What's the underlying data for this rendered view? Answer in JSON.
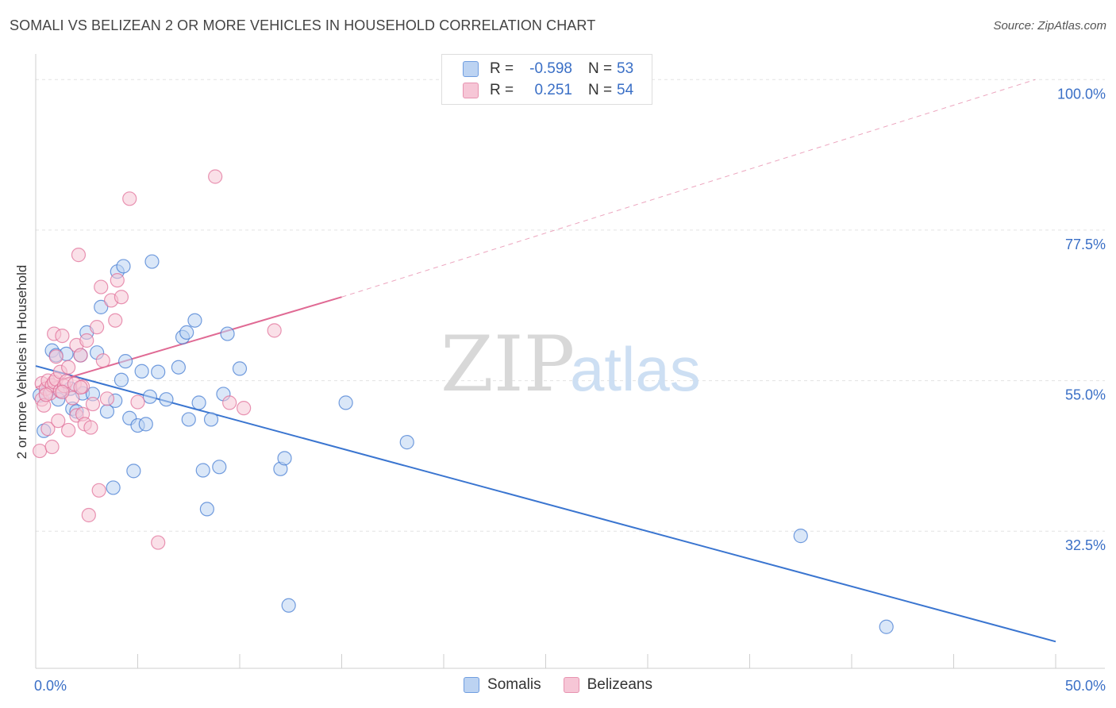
{
  "title": "SOMALI VS BELIZEAN 2 OR MORE VEHICLES IN HOUSEHOLD CORRELATION CHART",
  "source": "Source: ZipAtlas.com",
  "watermark": {
    "zip": "ZIP",
    "atlas": "atlas"
  },
  "colors": {
    "blue": "#3a75d0",
    "pink": "#e06a94",
    "blue_fill": "#bcd3f2",
    "pink_fill": "#f6c6d6",
    "tick_label": "#3a6fc6"
  },
  "legend": {
    "rows": [
      {
        "r_label": "R =",
        "r_value": "-0.598",
        "n_label": "N =",
        "n_value": "53",
        "color": "#bcd3f2",
        "border": "#6f9de0"
      },
      {
        "r_label": "R =",
        "r_value": "0.251",
        "n_label": "N =",
        "n_value": "54",
        "color": "#f6c6d6",
        "border": "#e793b0"
      }
    ]
  },
  "bottom_legend": [
    {
      "label": "Somalis",
      "color": "#bcd3f2",
      "border": "#6f9de0"
    },
    {
      "label": "Belizeans",
      "color": "#f6c6d6",
      "border": "#e793b0"
    }
  ],
  "chart_data": {
    "type": "scatter",
    "title": "SOMALI VS BELIZEAN 2 OR MORE VEHICLES IN HOUSEHOLD CORRELATION CHART",
    "xlabel": "",
    "ylabel": "2 or more Vehicles in Household",
    "xlim": [
      0,
      50
    ],
    "ylim": [
      12,
      103
    ],
    "x_tick_labels": [
      {
        "value": 0,
        "label": "0.0%"
      },
      {
        "value": 50,
        "label": "50.0%"
      }
    ],
    "y_ticks": [
      {
        "value": 32.5,
        "label": "32.5%"
      },
      {
        "value": 55.0,
        "label": "55.0%"
      },
      {
        "value": 77.5,
        "label": "77.5%"
      },
      {
        "value": 100.0,
        "label": "100.0%"
      }
    ],
    "grid": true,
    "legend_position": "top-center",
    "series": [
      {
        "name": "Somalis",
        "color": "#3a75d0",
        "points": [
          [
            0.4,
            47.5
          ],
          [
            0.5,
            53.2
          ],
          [
            0.8,
            59.5
          ],
          [
            1.0,
            58.8
          ],
          [
            1.2,
            53.4
          ],
          [
            1.5,
            59.0
          ],
          [
            1.7,
            53.8
          ],
          [
            1.8,
            50.8
          ],
          [
            2.0,
            50.4
          ],
          [
            2.2,
            58.8
          ],
          [
            2.3,
            53.1
          ],
          [
            2.5,
            62.2
          ],
          [
            2.8,
            53.0
          ],
          [
            3.0,
            59.2
          ],
          [
            3.2,
            66.0
          ],
          [
            3.5,
            50.4
          ],
          [
            3.8,
            39.0
          ],
          [
            4.0,
            71.3
          ],
          [
            4.2,
            55.1
          ],
          [
            4.3,
            72.1
          ],
          [
            4.4,
            57.9
          ],
          [
            4.6,
            49.4
          ],
          [
            4.8,
            41.5
          ],
          [
            5.0,
            48.3
          ],
          [
            5.2,
            56.4
          ],
          [
            5.4,
            48.5
          ],
          [
            5.6,
            52.6
          ],
          [
            5.7,
            72.8
          ],
          [
            6.0,
            56.3
          ],
          [
            6.4,
            52.2
          ],
          [
            7.0,
            57.0
          ],
          [
            7.2,
            61.5
          ],
          [
            7.4,
            62.2
          ],
          [
            7.5,
            49.2
          ],
          [
            7.8,
            64.0
          ],
          [
            8.0,
            51.7
          ],
          [
            8.2,
            41.6
          ],
          [
            8.4,
            35.8
          ],
          [
            8.6,
            49.2
          ],
          [
            9.0,
            42.1
          ],
          [
            9.2,
            53.0
          ],
          [
            9.4,
            62.0
          ],
          [
            10.0,
            56.8
          ],
          [
            12.0,
            41.8
          ],
          [
            12.2,
            43.4
          ],
          [
            12.4,
            21.4
          ],
          [
            15.2,
            51.7
          ],
          [
            18.2,
            45.8
          ],
          [
            37.5,
            31.8
          ],
          [
            41.7,
            18.2
          ],
          [
            0.2,
            52.8
          ],
          [
            1.1,
            52.2
          ],
          [
            3.9,
            52.0
          ]
        ]
      },
      {
        "name": "Belizeans",
        "color": "#e06a94",
        "points": [
          [
            0.2,
            44.5
          ],
          [
            0.3,
            52.2
          ],
          [
            0.3,
            54.6
          ],
          [
            0.4,
            51.3
          ],
          [
            0.5,
            53.8
          ],
          [
            0.6,
            55.0
          ],
          [
            0.6,
            47.8
          ],
          [
            0.7,
            53.1
          ],
          [
            0.8,
            45.1
          ],
          [
            0.8,
            54.3
          ],
          [
            0.9,
            62.0
          ],
          [
            0.9,
            54.8
          ],
          [
            1.0,
            58.6
          ],
          [
            1.0,
            55.2
          ],
          [
            1.1,
            49.0
          ],
          [
            1.2,
            56.3
          ],
          [
            1.2,
            53.5
          ],
          [
            1.3,
            61.7
          ],
          [
            1.4,
            54.2
          ],
          [
            1.5,
            54.9
          ],
          [
            1.6,
            57.0
          ],
          [
            1.6,
            47.6
          ],
          [
            1.8,
            52.4
          ],
          [
            1.9,
            54.5
          ],
          [
            2.0,
            49.8
          ],
          [
            2.0,
            60.3
          ],
          [
            2.1,
            73.8
          ],
          [
            2.2,
            58.8
          ],
          [
            2.3,
            54.1
          ],
          [
            2.3,
            50.0
          ],
          [
            2.4,
            48.5
          ],
          [
            2.5,
            61.0
          ],
          [
            2.6,
            34.9
          ],
          [
            2.7,
            48.0
          ],
          [
            2.8,
            51.5
          ],
          [
            3.0,
            63.0
          ],
          [
            3.1,
            38.6
          ],
          [
            3.2,
            69.0
          ],
          [
            3.3,
            58.0
          ],
          [
            3.5,
            52.3
          ],
          [
            3.7,
            67.0
          ],
          [
            3.9,
            64.0
          ],
          [
            4.0,
            70.0
          ],
          [
            4.2,
            67.5
          ],
          [
            4.6,
            82.2
          ],
          [
            5.0,
            51.8
          ],
          [
            6.0,
            30.8
          ],
          [
            8.8,
            85.5
          ],
          [
            9.5,
            51.7
          ],
          [
            10.2,
            50.9
          ],
          [
            11.7,
            62.5
          ],
          [
            0.5,
            52.9
          ],
          [
            1.3,
            53.3
          ],
          [
            2.2,
            54.0
          ]
        ]
      }
    ],
    "trend_lines": [
      {
        "series": "Somalis",
        "x": [
          0,
          50
        ],
        "y": [
          57.2,
          16.0
        ]
      },
      {
        "series": "Belizeans",
        "x": [
          0,
          15
        ],
        "y": [
          54.0,
          67.5
        ],
        "extended_dashed_to": [
          49,
          100.0
        ]
      }
    ]
  }
}
